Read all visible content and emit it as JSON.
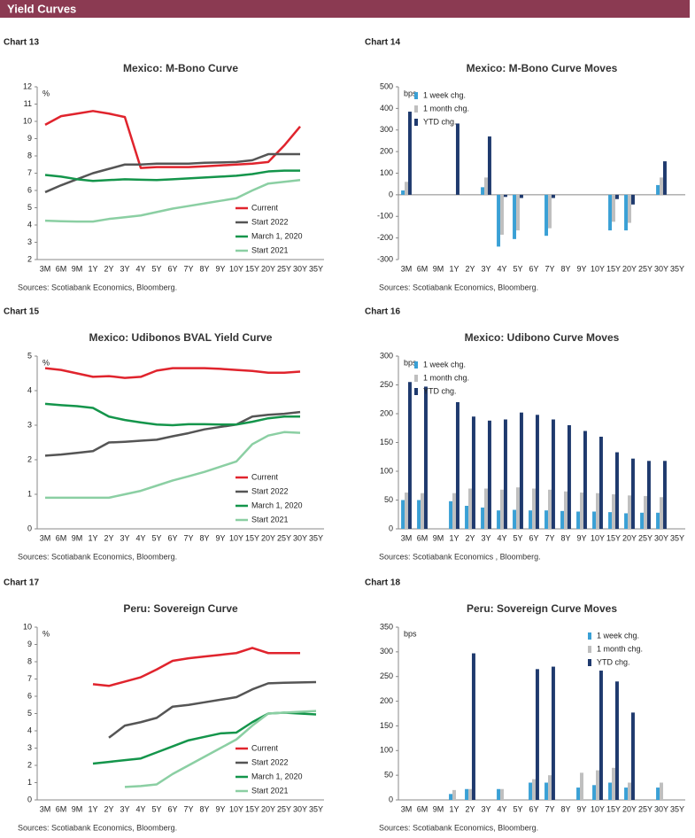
{
  "header": {
    "title": "Yield Curves"
  },
  "chart_data": [
    {
      "label": "Chart 13",
      "type": "line",
      "title": "Mexico: M-Bono Curve",
      "unit": "%",
      "categories": [
        "3M",
        "6M",
        "9M",
        "1Y",
        "2Y",
        "3Y",
        "4Y",
        "5Y",
        "6Y",
        "7Y",
        "8Y",
        "9Y",
        "10Y",
        "15Y",
        "20Y",
        "25Y",
        "30Y",
        "35Y"
      ],
      "series": [
        {
          "name": "Current",
          "color": "#e0242d",
          "values": [
            9.8,
            10.3,
            10.45,
            10.6,
            10.45,
            10.25,
            7.3,
            7.35,
            7.35,
            7.35,
            7.4,
            7.45,
            7.5,
            7.55,
            7.65,
            8.6,
            9.7,
            null
          ]
        },
        {
          "name": "Start 2022",
          "color": "#555555",
          "values": [
            5.9,
            6.3,
            6.65,
            7.0,
            7.25,
            7.5,
            7.5,
            7.55,
            7.55,
            7.55,
            7.6,
            7.62,
            7.65,
            7.75,
            8.1,
            8.1,
            8.1,
            null
          ]
        },
        {
          "name": "March 1, 2020",
          "color": "#14954b",
          "values": [
            6.9,
            6.8,
            6.65,
            6.55,
            6.6,
            6.65,
            6.62,
            6.6,
            6.65,
            6.7,
            6.75,
            6.8,
            6.85,
            6.95,
            7.1,
            7.15,
            7.15,
            null
          ]
        },
        {
          "name": "Start 2021",
          "color": "#8bcfa3",
          "values": [
            4.25,
            4.22,
            4.2,
            4.2,
            4.35,
            4.45,
            4.55,
            4.75,
            4.95,
            5.1,
            5.25,
            5.4,
            5.55,
            6.0,
            6.4,
            6.5,
            6.6,
            null
          ]
        }
      ],
      "ylim": [
        2,
        12
      ],
      "yticks": [
        2,
        3,
        4,
        5,
        6,
        7,
        8,
        9,
        10,
        11,
        12
      ],
      "legend": "lower right",
      "sources": "Sources: Scotiabank Economics, Bloomberg."
    },
    {
      "label": "Chart 14",
      "type": "bar",
      "title": "Mexico: M-Bono Curve Moves",
      "unit": "bps",
      "categories": [
        "3M",
        "6M",
        "9M",
        "1Y",
        "2Y",
        "3Y",
        "4Y",
        "5Y",
        "6Y",
        "7Y",
        "8Y",
        "9Y",
        "10Y",
        "15Y",
        "20Y",
        "25Y",
        "30Y",
        "35Y"
      ],
      "series": [
        {
          "name": "1 week chg.",
          "color": "#3aa0d5",
          "values": [
            20,
            null,
            null,
            null,
            null,
            35,
            -240,
            -205,
            null,
            -190,
            null,
            null,
            null,
            -165,
            -165,
            null,
            45,
            null
          ]
        },
        {
          "name": "1 month chg.",
          "color": "#bfbfbf",
          "values": [
            60,
            null,
            null,
            null,
            null,
            80,
            -185,
            -165,
            null,
            -155,
            null,
            null,
            null,
            -125,
            -130,
            null,
            80,
            null
          ]
        },
        {
          "name": "YTD chg.",
          "color": "#1f3a6e",
          "values": [
            385,
            null,
            null,
            330,
            null,
            270,
            -10,
            -15,
            null,
            -15,
            null,
            null,
            null,
            -20,
            -45,
            null,
            155,
            null
          ]
        }
      ],
      "ylim": [
        -300,
        500
      ],
      "yticks": [
        -300,
        -200,
        -100,
        0,
        100,
        200,
        300,
        400,
        500
      ],
      "legend": "upper left",
      "sources": "Sources: Scotiabank Economics, Bloomberg."
    },
    {
      "label": "Chart 15",
      "type": "line",
      "title": "Mexico: Udibonos  BVAL Yield Curve",
      "unit": "%",
      "categories": [
        "3M",
        "6M",
        "9M",
        "1Y",
        "2Y",
        "3Y",
        "4Y",
        "5Y",
        "6Y",
        "7Y",
        "8Y",
        "9Y",
        "10Y",
        "15Y",
        "20Y",
        "25Y",
        "30Y",
        "35Y"
      ],
      "series": [
        {
          "name": "Current",
          "color": "#e0242d",
          "values": [
            4.65,
            4.6,
            4.5,
            4.4,
            4.42,
            4.37,
            4.4,
            4.58,
            4.65,
            4.65,
            4.65,
            4.63,
            4.6,
            4.57,
            4.52,
            4.52,
            4.55,
            null
          ]
        },
        {
          "name": "Start 2022",
          "color": "#555555",
          "values": [
            2.12,
            2.15,
            2.2,
            2.25,
            2.5,
            2.52,
            2.55,
            2.58,
            2.68,
            2.77,
            2.88,
            2.95,
            3.02,
            3.25,
            3.3,
            3.33,
            3.38,
            null
          ]
        },
        {
          "name": "March 1, 2020",
          "color": "#14954b",
          "values": [
            3.62,
            3.58,
            3.55,
            3.5,
            3.25,
            3.15,
            3.08,
            3.02,
            3.0,
            3.03,
            3.03,
            3.02,
            3.02,
            3.1,
            3.2,
            3.25,
            3.25,
            null
          ]
        },
        {
          "name": "Start 2021",
          "color": "#8bcfa3",
          "values": [
            0.9,
            0.9,
            0.9,
            0.9,
            0.9,
            1.0,
            1.1,
            1.25,
            1.4,
            1.52,
            1.65,
            1.8,
            1.95,
            2.45,
            2.7,
            2.8,
            2.78,
            null
          ]
        }
      ],
      "ylim": [
        0,
        5
      ],
      "yticks": [
        0,
        1,
        2,
        3,
        4,
        5
      ],
      "legend": "lower right",
      "sources": "Sources: Scotiabank Economics, Bloomberg."
    },
    {
      "label": "Chart 16",
      "type": "bar",
      "title": "Mexico: Udibono Curve Moves",
      "unit": "bps",
      "categories": [
        "3M",
        "6M",
        "9M",
        "1Y",
        "2Y",
        "3Y",
        "4Y",
        "5Y",
        "6Y",
        "7Y",
        "8Y",
        "9Y",
        "10Y",
        "15Y",
        "20Y",
        "25Y",
        "30Y",
        "35Y"
      ],
      "series": [
        {
          "name": "1 week chg.",
          "color": "#3aa0d5",
          "values": [
            50,
            50,
            null,
            48,
            40,
            37,
            32,
            33,
            32,
            32,
            31,
            30,
            30,
            29,
            27,
            28,
            28,
            null
          ]
        },
        {
          "name": "1 month chg.",
          "color": "#bfbfbf",
          "values": [
            63,
            62,
            null,
            62,
            70,
            70,
            68,
            72,
            70,
            68,
            65,
            63,
            62,
            60,
            58,
            57,
            55,
            null
          ]
        },
        {
          "name": "YTD chg.",
          "color": "#1f3a6e",
          "values": [
            255,
            247,
            null,
            220,
            195,
            188,
            190,
            202,
            198,
            190,
            180,
            170,
            160,
            133,
            122,
            118,
            118,
            null
          ]
        }
      ],
      "ylim": [
        0,
        300
      ],
      "yticks": [
        0,
        50,
        100,
        150,
        200,
        250,
        300
      ],
      "legend": "upper left",
      "sources": "Sources: Scotiabank Economics , Bloomberg."
    },
    {
      "label": "Chart 17",
      "type": "line",
      "title": "Peru: Sovereign Curve",
      "unit": "%",
      "categories": [
        "3M",
        "6M",
        "9M",
        "1Y",
        "2Y",
        "3Y",
        "4Y",
        "5Y",
        "6Y",
        "7Y",
        "8Y",
        "9Y",
        "10Y",
        "15Y",
        "20Y",
        "25Y",
        "30Y",
        "35Y"
      ],
      "series": [
        {
          "name": "Current",
          "color": "#e0242d",
          "values": [
            null,
            null,
            null,
            6.7,
            6.6,
            6.85,
            7.1,
            7.55,
            8.05,
            8.2,
            8.3,
            8.4,
            8.5,
            8.8,
            8.5,
            8.5,
            8.5,
            null
          ]
        },
        {
          "name": "Start 2022",
          "color": "#555555",
          "values": [
            null,
            null,
            null,
            null,
            3.6,
            4.3,
            4.5,
            4.75,
            5.4,
            5.5,
            5.65,
            5.8,
            5.95,
            6.4,
            6.75,
            6.78,
            6.8,
            6.82
          ]
        },
        {
          "name": "March 1, 2020",
          "color": "#14954b",
          "values": [
            null,
            null,
            null,
            2.1,
            2.2,
            2.3,
            2.4,
            2.75,
            3.1,
            3.45,
            3.65,
            3.85,
            3.9,
            4.5,
            5.0,
            5.05,
            5.0,
            4.95
          ]
        },
        {
          "name": "Start 2021",
          "color": "#8bcfa3",
          "values": [
            null,
            null,
            null,
            null,
            null,
            0.75,
            0.8,
            0.9,
            1.5,
            2.0,
            2.5,
            3.0,
            3.5,
            4.3,
            5.0,
            5.05,
            5.1,
            5.15
          ]
        }
      ],
      "ylim": [
        0,
        10
      ],
      "yticks": [
        0,
        1,
        2,
        3,
        4,
        5,
        6,
        7,
        8,
        9,
        10
      ],
      "legend": "lower right",
      "sources": "Sources: Scotiabank Economics, Bloomberg."
    },
    {
      "label": "Chart 18",
      "type": "bar",
      "title": "Peru: Sovereign Curve Moves",
      "unit": "bps",
      "categories": [
        "3M",
        "6M",
        "9M",
        "1Y",
        "2Y",
        "3Y",
        "4Y",
        "5Y",
        "6Y",
        "7Y",
        "8Y",
        "9Y",
        "10Y",
        "15Y",
        "20Y",
        "25Y",
        "30Y",
        "35Y"
      ],
      "series": [
        {
          "name": "1 week chg.",
          "color": "#3aa0d5",
          "values": [
            null,
            null,
            null,
            12,
            22,
            null,
            22,
            null,
            35,
            35,
            null,
            25,
            30,
            35,
            25,
            null,
            25,
            null
          ]
        },
        {
          "name": "1 month chg.",
          "color": "#bfbfbf",
          "values": [
            null,
            null,
            null,
            20,
            22,
            null,
            22,
            null,
            42,
            50,
            null,
            55,
            60,
            65,
            35,
            null,
            35,
            null
          ]
        },
        {
          "name": "YTD chg.",
          "color": "#1f3a6e",
          "values": [
            null,
            null,
            null,
            null,
            297,
            null,
            null,
            null,
            265,
            270,
            null,
            null,
            262,
            240,
            177,
            null,
            null,
            null
          ]
        }
      ],
      "ylim": [
        0,
        350
      ],
      "yticks": [
        0,
        50,
        100,
        150,
        200,
        250,
        300,
        350
      ],
      "legend": "upper right",
      "sources": "Sources: Scotiabank Economics, Bloomberg."
    }
  ]
}
